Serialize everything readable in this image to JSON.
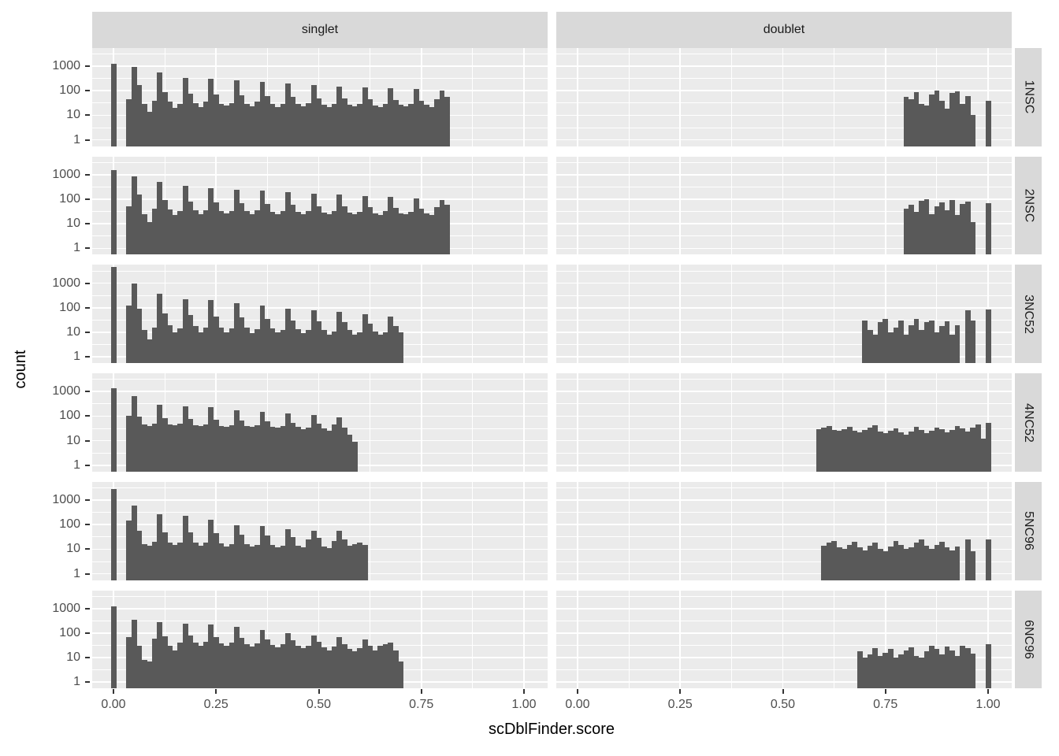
{
  "chart_data": {
    "type": "bar",
    "subtype": "faceted-log-histogram",
    "xlabel": "scDblFinder.score",
    "ylabel": "count",
    "col_facets": [
      "singlet",
      "doublet"
    ],
    "row_facets": [
      "1NSC",
      "2NSC",
      "3NC52",
      "4NC52",
      "5NC96",
      "6NC96"
    ],
    "x_ticks": [
      "0.00",
      "0.25",
      "0.50",
      "0.75",
      "1.00"
    ],
    "x_tick_values": [
      0,
      0.25,
      0.5,
      0.75,
      1.0
    ],
    "x_minor_values": [
      0.125,
      0.375,
      0.625,
      0.875
    ],
    "y_ticks": [
      "1000",
      "100",
      "10",
      "1"
    ],
    "y_tick_values": [
      1000,
      100,
      10,
      1
    ],
    "y_minor_values": [
      3.162,
      31.62,
      316.2,
      3162
    ],
    "y_log_domain": [
      -0.26,
      3.74
    ],
    "x_domain": [
      -0.052,
      1.058
    ],
    "binwidth": 0.0125,
    "bar_color": "#595959",
    "panel_color": "#EBEBEB",
    "strip_color": "#D9D9D9",
    "grid_color": "#ffffff",
    "rows": [
      {
        "label": "1NSC",
        "singlet": {
          "zero_bar": 1300,
          "blocks": [
            {
              "x0": 0.0375,
              "heights": [
                45,
                900,
                170,
                28,
                14,
                38,
                560,
                90,
                35,
                20,
                30,
                340,
                75,
                32,
                22,
                35,
                300,
                70,
                30,
                25,
                32,
                260,
                65,
                30,
                24,
                35,
                230,
                60,
                28,
                22,
                30,
                200,
                55,
                28,
                24,
                32,
                170,
                50,
                26,
                22,
                30,
                150,
                48,
                26,
                24,
                28,
                140,
                45,
                25,
                22,
                30,
                130,
                42,
                26,
                24,
                28,
                115,
                40,
                26,
                22,
                45,
                100,
                55
              ]
            }
          ]
        },
        "doublet": {
          "blocks": [
            {
              "x0": 0.8,
              "heights": [
                55,
                45,
                90,
                30,
                25,
                70,
                105,
                40,
                18,
                80,
                95,
                28,
                60,
                10
              ]
            }
          ],
          "one_bar": 40
        }
      },
      {
        "label": "2NSC",
        "singlet": {
          "zero_bar": 1500,
          "blocks": [
            {
              "x0": 0.0375,
              "heights": [
                50,
                820,
                150,
                25,
                12,
                40,
                500,
                95,
                38,
                22,
                32,
                360,
                80,
                35,
                24,
                36,
                280,
                72,
                32,
                26,
                34,
                250,
                68,
                32,
                25,
                36,
                220,
                62,
                30,
                24,
                32,
                190,
                58,
                30,
                25,
                34,
                165,
                52,
                28,
                24,
                32,
                150,
                50,
                28,
                25,
                30,
                135,
                48,
                26,
                23,
                32,
                125,
                45,
                27,
                25,
                30,
                110,
                42,
                27,
                23,
                48,
                95,
                58
              ]
            }
          ]
        },
        "doublet": {
          "blocks": [
            {
              "x0": 0.8,
              "heights": [
                40,
                60,
                30,
                85,
                100,
                25,
                50,
                75,
                35,
                90,
                22,
                65,
                80,
                12
              ]
            }
          ],
          "one_bar": 70
        }
      },
      {
        "label": "3NC52",
        "singlet": {
          "zero_bar": 4600,
          "blocks": [
            {
              "x0": 0.0375,
              "heights": [
                120,
                1000,
                90,
                12,
                5,
                15,
                380,
                60,
                20,
                10,
                14,
                220,
                50,
                18,
                10,
                15,
                200,
                45,
                16,
                10,
                14,
                150,
                40,
                15,
                9,
                13,
                120,
                35,
                14,
                10,
                12,
                90,
                30,
                13,
                9,
                12,
                80,
                28,
                12,
                8,
                11,
                70,
                25,
                12,
                8,
                10,
                55,
                22,
                11,
                8,
                10,
                45,
                18,
                10
              ]
            }
          ]
        },
        "doublet": {
          "blocks": [
            {
              "x0": 0.7,
              "heights": [
                30,
                12,
                8,
                25,
                35,
                10,
                15,
                30,
                8,
                20,
                35,
                12,
                25,
                30,
                10,
                18,
                28,
                8,
                20
              ]
            },
            {
              "x0": 0.95,
              "heights": [
                80,
                30
              ]
            }
          ],
          "one_bar": 85
        }
      },
      {
        "label": "4NC52",
        "singlet": {
          "zero_bar": 1400,
          "blocks": [
            {
              "x0": 0.0375,
              "heights": [
                100,
                680,
                95,
                45,
                40,
                50,
                300,
                80,
                45,
                42,
                48,
                260,
                75,
                42,
                40,
                46,
                230,
                70,
                40,
                38,
                44,
                170,
                65,
                40,
                36,
                42,
                150,
                60,
                38,
                34,
                40,
                130,
                55,
                36,
                30,
                35,
                110,
                50,
                32,
                26,
                45,
                90,
                35,
                18,
                9
              ]
            }
          ]
        },
        "doublet": {
          "blocks": [
            {
              "x0": 0.5875,
              "heights": [
                30,
                35,
                40,
                28,
                25,
                30,
                38,
                26,
                22,
                28,
                35,
                42,
                24,
                20,
                26,
                32,
                22,
                18,
                24,
                38,
                28,
                20,
                25,
                35,
                30,
                22,
                28,
                40,
                32,
                24,
                35,
                45,
                12
              ]
            }
          ],
          "one_bar": 55
        }
      },
      {
        "label": "5NC96",
        "singlet": {
          "zero_bar": 2800,
          "blocks": [
            {
              "x0": 0.0375,
              "heights": [
                150,
                600,
                55,
                16,
                14,
                20,
                260,
                50,
                18,
                15,
                18,
                230,
                48,
                18,
                14,
                18,
                160,
                45,
                17,
                13,
                16,
                95,
                40,
                16,
                13,
                15,
                85,
                35,
                15,
                12,
                14,
                65,
                30,
                14,
                12,
                25,
                55,
                28,
                13,
                11,
                22,
                58,
                25,
                14,
                16,
                18,
                15
              ]
            }
          ]
        },
        "doublet": {
          "blocks": [
            {
              "x0": 0.6,
              "heights": [
                14,
                18,
                22,
                12,
                10,
                15,
                20,
                12,
                9,
                14,
                18,
                10,
                8,
                13,
                22,
                15,
                10,
                12,
                18,
                25,
                14,
                10,
                15,
                20,
                12,
                9,
                13
              ]
            },
            {
              "x0": 0.95,
              "heights": [
                25,
                8
              ]
            }
          ],
          "one_bar": 25
        }
      },
      {
        "label": "6NC96",
        "singlet": {
          "zero_bar": 1200,
          "blocks": [
            {
              "x0": 0.0375,
              "heights": [
                70,
                350,
                30,
                8,
                7,
                60,
                280,
                75,
                30,
                20,
                40,
                250,
                80,
                40,
                30,
                45,
                230,
                70,
                38,
                30,
                42,
                180,
                65,
                36,
                28,
                38,
                130,
                55,
                32,
                26,
                35,
                100,
                50,
                30,
                24,
                30,
                80,
                45,
                26,
                20,
                28,
                70,
                35,
                22,
                18,
                25,
                55,
                30,
                20,
                30,
                35,
                40,
                20,
                7
              ]
            }
          ]
        },
        "doublet": {
          "blocks": [
            {
              "x0": 0.6875,
              "heights": [
                18,
                10,
                14,
                25,
                12,
                16,
                22,
                10,
                14,
                20,
                26,
                12,
                10,
                18,
                30,
                22,
                14,
                28,
                20,
                12,
                30,
                25,
                15
              ]
            }
          ],
          "one_bar": 35
        }
      }
    ]
  }
}
